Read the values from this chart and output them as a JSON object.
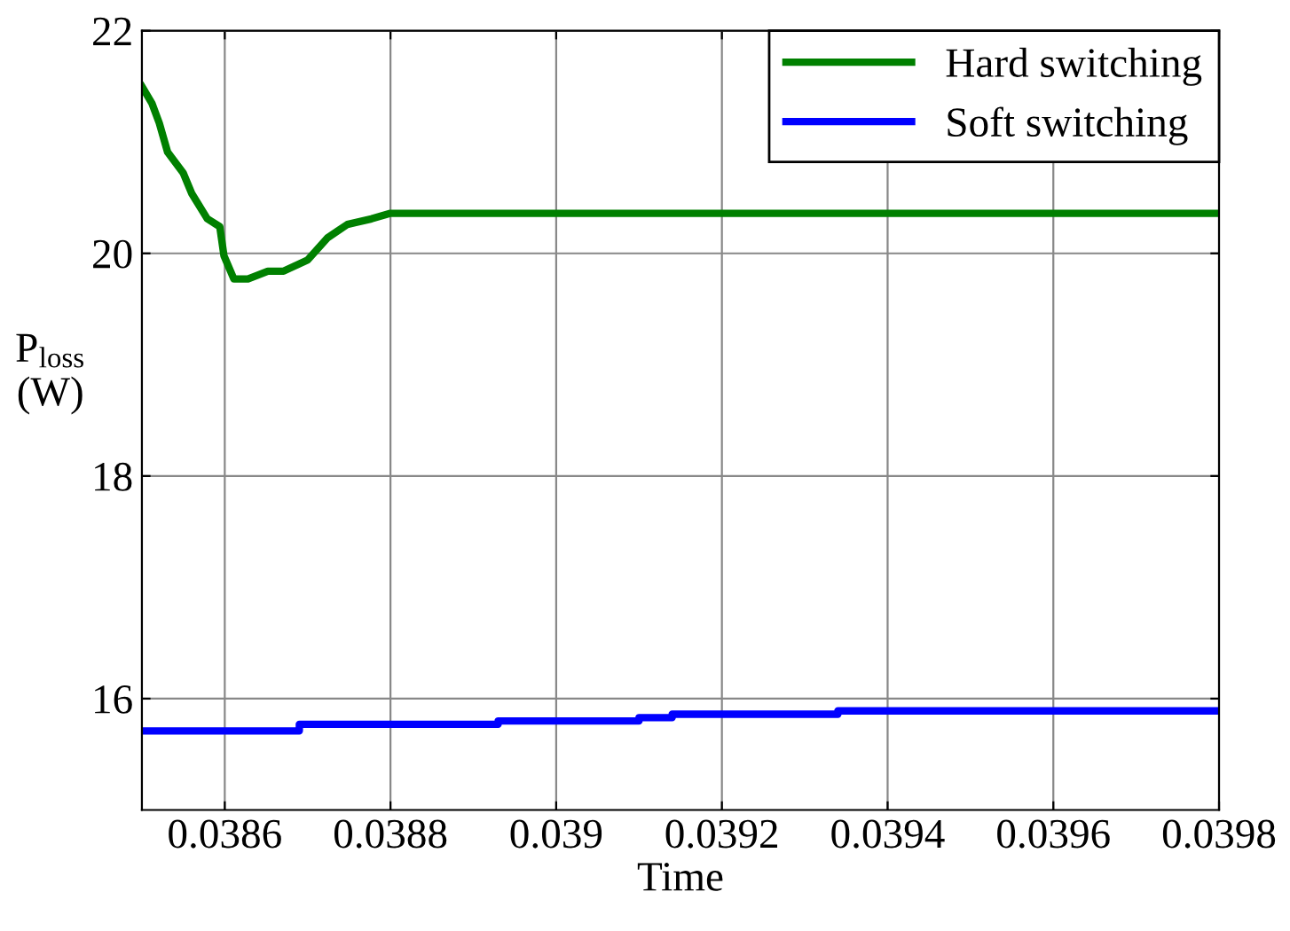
{
  "chart_data": {
    "type": "line",
    "xlabel": "Time",
    "ylabel": "P$_{loss}$\n(W)",
    "xlim": [
      0.0385,
      0.0398
    ],
    "ylim": [
      15,
      22
    ],
    "xticks": [
      0.0386,
      0.0388,
      0.039,
      0.0392,
      0.0394,
      0.0396,
      0.0398
    ],
    "yticks": [
      16,
      18,
      20,
      22
    ],
    "grid": true,
    "legend": "top right",
    "line_style": "solid",
    "series": [
      {
        "name": "Hard switching",
        "color": "#008000",
        "x": [
          0.0385,
          0.038512,
          0.038521,
          0.038531,
          0.03855,
          0.03856,
          0.038579,
          0.038594,
          0.038599,
          0.038611,
          0.038628,
          0.038652,
          0.038671,
          0.0387,
          0.038724,
          0.038748,
          0.038777,
          0.0388,
          0.0398
        ],
        "values": [
          21.5,
          21.35,
          21.17,
          20.91,
          20.72,
          20.54,
          20.31,
          20.24,
          19.98,
          19.77,
          19.77,
          19.84,
          19.84,
          19.94,
          20.14,
          20.26,
          20.31,
          20.36,
          20.36
        ]
      },
      {
        "name": "Soft switching",
        "color": "#0000ff",
        "x": [
          0.0385,
          0.03869,
          0.03869,
          0.03893,
          0.03893,
          0.0391,
          0.0391,
          0.03914,
          0.03914,
          0.03934,
          0.03934,
          0.0398
        ],
        "values": [
          15.71,
          15.71,
          15.77,
          15.77,
          15.8,
          15.8,
          15.83,
          15.83,
          15.86,
          15.86,
          15.89,
          15.89
        ]
      }
    ]
  }
}
